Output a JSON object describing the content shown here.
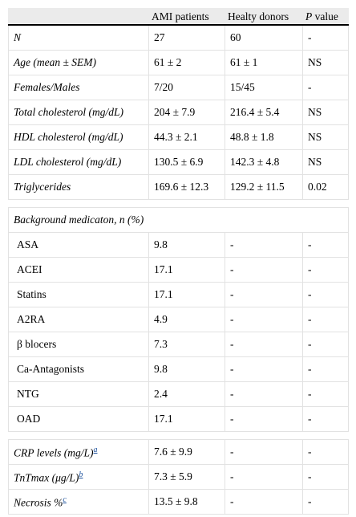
{
  "table": {
    "header": {
      "columns": [
        "AMI patients",
        "Healty donors"
      ],
      "p_value": {
        "symbol": "P",
        "text": "value"
      }
    },
    "rows": [
      [
        "N",
        "27",
        "60",
        "-"
      ],
      [
        "Age (mean ± SEM)",
        "61 ± 2",
        "61 ± 1",
        "NS"
      ],
      [
        "Females/Males",
        "7/20",
        "15/45",
        "-"
      ],
      [
        "Total cholesterol (mg/dL)",
        "204 ± 7.9",
        "216.4 ± 5.4",
        "NS"
      ],
      [
        "HDL cholesterol (mg/dL)",
        "44.3 ± 2.1",
        "48.8 ± 1.8",
        "NS"
      ],
      [
        "LDL cholesterol (mg/dL)",
        "130.5 ± 6.9",
        "142.3 ± 4.8",
        "NS"
      ],
      [
        "Triglycerides",
        "169.6 ± 12.3",
        "129.2 ± 11.5",
        "0.02"
      ]
    ],
    "medication": {
      "title": "Background medicaton, n (%)",
      "rows": [
        [
          "ASA",
          "9.8",
          "-",
          "-"
        ],
        [
          "ACEI",
          "17.1",
          "-",
          "-"
        ],
        [
          "Statins",
          "17.1",
          "-",
          "-"
        ],
        [
          "A2RA",
          "4.9",
          "-",
          "-"
        ],
        [
          "β blocers",
          "7.3",
          "-",
          "-"
        ],
        [
          "Ca-Antagonists",
          "9.8",
          "-",
          "-"
        ],
        [
          "NTG",
          "2.4",
          "-",
          "-"
        ],
        [
          "OAD",
          "17.1",
          "-",
          "-"
        ]
      ]
    },
    "markers": [
      {
        "label": "CRP levels (mg/L)",
        "note": "a",
        "values": [
          "7.6 ± 9.9",
          "-",
          "-"
        ]
      },
      {
        "label": "TnTmax (μg/L)",
        "note": "b",
        "values": [
          "7.3 ± 5.9",
          "-",
          "-"
        ]
      },
      {
        "label": "Necrosis %",
        "note": "c",
        "values": [
          "13.5 ± 9.8",
          "-",
          "-"
        ]
      }
    ]
  }
}
